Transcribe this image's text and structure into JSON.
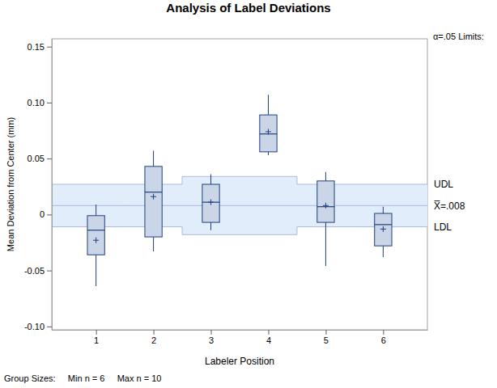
{
  "chart_data": {
    "type": "box",
    "title": "Analysis of Label Deviations",
    "x_label": "Labeler Position",
    "y_label": "Mean Deviation from Center (mm)",
    "categories": [
      "1",
      "2",
      "3",
      "4",
      "5",
      "6"
    ],
    "boxes": {
      "min": [
        -0.064,
        -0.033,
        -0.014,
        0.053,
        -0.046,
        -0.038
      ],
      "q1": [
        -0.036,
        -0.02,
        -0.007,
        0.056,
        -0.007,
        -0.028
      ],
      "median": [
        -0.014,
        0.02,
        0.011,
        0.072,
        0.007,
        -0.009
      ],
      "q3": [
        -0.001,
        0.043,
        0.027,
        0.089,
        0.03,
        0.001
      ],
      "max": [
        0.009,
        0.057,
        0.036,
        0.107,
        0.038,
        0.007
      ],
      "mean": [
        -0.023,
        0.016,
        0.011,
        0.074,
        0.008,
        -0.013
      ]
    },
    "limits": {
      "title": "α=.05 Limits:",
      "upper": [
        0.027,
        0.027,
        0.034,
        0.034,
        0.027,
        0.027
      ],
      "lower": [
        -0.011,
        -0.011,
        -0.018,
        -0.018,
        -0.011,
        -0.011
      ],
      "center": {
        "value": 0.008,
        "label": "X̅=.008"
      },
      "upper_label": "UDL",
      "lower_label": "LDL"
    },
    "footnote": "Group Sizes:     Min n = 6     Max n = 10",
    "ylim": [
      -0.103,
      0.157
    ],
    "yticks": [
      {
        "value": -0.1,
        "label": "-0.10"
      },
      {
        "value": -0.05,
        "label": "-0.05"
      },
      0,
      {
        "value": 0.05,
        "label": "0.05"
      },
      {
        "value": 0.1,
        "label": "0.10"
      },
      {
        "value": 0.15,
        "label": "0.15"
      }
    ],
    "color": "#cbd5e8"
  }
}
